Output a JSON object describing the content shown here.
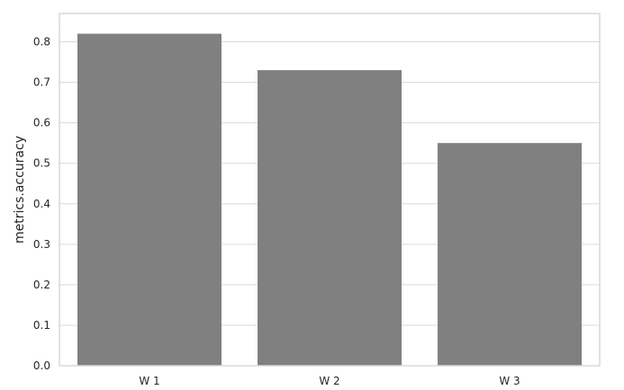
{
  "chart_data": {
    "type": "bar",
    "categories": [
      "W 1",
      "W 2",
      "W 3"
    ],
    "values": [
      0.82,
      0.73,
      0.55
    ],
    "title": "",
    "xlabel": "",
    "ylabel": "metrics.accuracy",
    "ylim": [
      0,
      0.87
    ],
    "yticks": [
      0.0,
      0.1,
      0.2,
      0.3,
      0.4,
      0.5,
      0.6,
      0.7,
      0.8
    ],
    "ytick_labels": [
      "0.0",
      "0.1",
      "0.2",
      "0.3",
      "0.4",
      "0.5",
      "0.6",
      "0.7",
      "0.8"
    ],
    "grid": "horizontal",
    "bar_color": "#808080",
    "grid_color": "#d9d9d9",
    "frame_color": "#d9d9d9"
  }
}
